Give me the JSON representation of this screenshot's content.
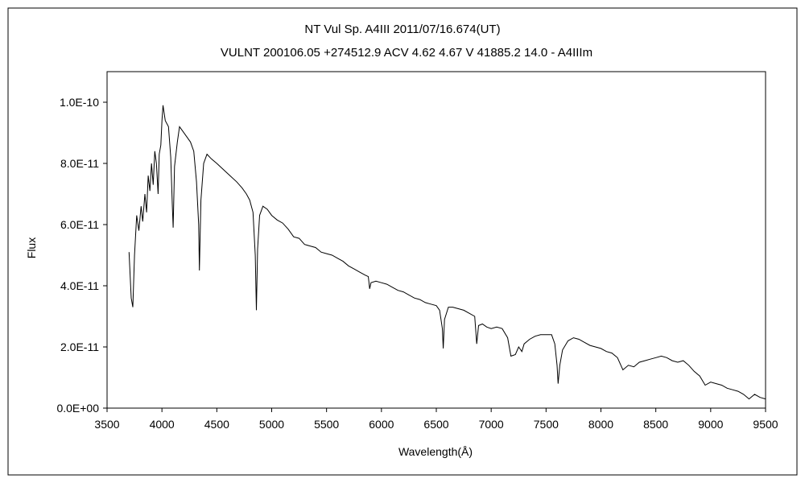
{
  "chart_data": {
    "type": "line",
    "title": "NT Vul    Sp. A4III    2011/07/16.674(UT)",
    "subtitle": "VULNT 200106.05 +274512.9  ACV 4.62  4.67  V 41885.2 14.0 - A4IIIm",
    "xlabel": "Wavelength(Å)",
    "ylabel": "Flux",
    "xlim": [
      3500,
      9500
    ],
    "ylim": [
      0,
      1.1e-10
    ],
    "xticks": [
      "3500",
      "4000",
      "4500",
      "5000",
      "5500",
      "6000",
      "6500",
      "7000",
      "7500",
      "8000",
      "8500",
      "9000",
      "9500"
    ],
    "xtick_values": [
      3500,
      4000,
      4500,
      5000,
      5500,
      6000,
      6500,
      7000,
      7500,
      8000,
      8500,
      9000,
      9500
    ],
    "yticks": [
      "0.0E+00",
      "2.0E-11",
      "4.0E-11",
      "6.0E-11",
      "8.0E-11",
      "1.0E-10"
    ],
    "ytick_values": [
      0,
      2e-11,
      4e-11,
      6e-11,
      8e-11,
      1e-10
    ],
    "grid": false,
    "legend": false,
    "series": [
      {
        "color": "#000000",
        "points": [
          [
            3700,
            5.1e-11
          ],
          [
            3720,
            3.6e-11
          ],
          [
            3735,
            3.3e-11
          ],
          [
            3750,
            5e-11
          ],
          [
            3770,
            6.3e-11
          ],
          [
            3790,
            5.8e-11
          ],
          [
            3810,
            6.6e-11
          ],
          [
            3825,
            6.1e-11
          ],
          [
            3845,
            7e-11
          ],
          [
            3860,
            6.4e-11
          ],
          [
            3875,
            7.6e-11
          ],
          [
            3890,
            7.1e-11
          ],
          [
            3905,
            8e-11
          ],
          [
            3920,
            7.3e-11
          ],
          [
            3935,
            8.4e-11
          ],
          [
            3950,
            8e-11
          ],
          [
            3965,
            7e-11
          ],
          [
            3975,
            8.3e-11
          ],
          [
            3990,
            8.6e-11
          ],
          [
            4000,
            9.4e-11
          ],
          [
            4010,
            9.9e-11
          ],
          [
            4030,
            9.4e-11
          ],
          [
            4060,
            9.2e-11
          ],
          [
            4080,
            8.2e-11
          ],
          [
            4095,
            6.6e-11
          ],
          [
            4102,
            5.9e-11
          ],
          [
            4115,
            7.9e-11
          ],
          [
            4140,
            8.7e-11
          ],
          [
            4160,
            9.2e-11
          ],
          [
            4190,
            9.05e-11
          ],
          [
            4220,
            8.9e-11
          ],
          [
            4260,
            8.7e-11
          ],
          [
            4290,
            8.4e-11
          ],
          [
            4315,
            7.4e-11
          ],
          [
            4335,
            6e-11
          ],
          [
            4341,
            4.5e-11
          ],
          [
            4355,
            6.8e-11
          ],
          [
            4380,
            8e-11
          ],
          [
            4410,
            8.3e-11
          ],
          [
            4450,
            8.15e-11
          ],
          [
            4500,
            8e-11
          ],
          [
            4560,
            7.8e-11
          ],
          [
            4620,
            7.6e-11
          ],
          [
            4680,
            7.4e-11
          ],
          [
            4730,
            7.2e-11
          ],
          [
            4770,
            7e-11
          ],
          [
            4800,
            6.8e-11
          ],
          [
            4830,
            6.4e-11
          ],
          [
            4850,
            5e-11
          ],
          [
            4861,
            3.2e-11
          ],
          [
            4872,
            5.2e-11
          ],
          [
            4890,
            6.3e-11
          ],
          [
            4920,
            6.6e-11
          ],
          [
            4960,
            6.5e-11
          ],
          [
            5000,
            6.3e-11
          ],
          [
            5050,
            6.15e-11
          ],
          [
            5100,
            6.05e-11
          ],
          [
            5150,
            5.85e-11
          ],
          [
            5200,
            5.6e-11
          ],
          [
            5250,
            5.55e-11
          ],
          [
            5300,
            5.35e-11
          ],
          [
            5350,
            5.3e-11
          ],
          [
            5400,
            5.25e-11
          ],
          [
            5450,
            5.1e-11
          ],
          [
            5500,
            5.05e-11
          ],
          [
            5550,
            5e-11
          ],
          [
            5600,
            4.9e-11
          ],
          [
            5650,
            4.8e-11
          ],
          [
            5700,
            4.65e-11
          ],
          [
            5750,
            4.55e-11
          ],
          [
            5800,
            4.45e-11
          ],
          [
            5850,
            4.35e-11
          ],
          [
            5880,
            4.3e-11
          ],
          [
            5893,
            3.9e-11
          ],
          [
            5905,
            4.1e-11
          ],
          [
            5950,
            4.15e-11
          ],
          [
            6000,
            4.1e-11
          ],
          [
            6050,
            4.05e-11
          ],
          [
            6100,
            3.95e-11
          ],
          [
            6150,
            3.85e-11
          ],
          [
            6200,
            3.8e-11
          ],
          [
            6250,
            3.7e-11
          ],
          [
            6300,
            3.6e-11
          ],
          [
            6350,
            3.55e-11
          ],
          [
            6400,
            3.45e-11
          ],
          [
            6450,
            3.4e-11
          ],
          [
            6500,
            3.35e-11
          ],
          [
            6530,
            3.2e-11
          ],
          [
            6555,
            2.6e-11
          ],
          [
            6563,
            1.95e-11
          ],
          [
            6575,
            2.9e-11
          ],
          [
            6610,
            3.3e-11
          ],
          [
            6650,
            3.3e-11
          ],
          [
            6700,
            3.25e-11
          ],
          [
            6750,
            3.2e-11
          ],
          [
            6800,
            3.1e-11
          ],
          [
            6850,
            3e-11
          ],
          [
            6868,
            2.1e-11
          ],
          [
            6885,
            2.7e-11
          ],
          [
            6920,
            2.75e-11
          ],
          [
            6960,
            2.65e-11
          ],
          [
            7000,
            2.6e-11
          ],
          [
            7050,
            2.65e-11
          ],
          [
            7100,
            2.6e-11
          ],
          [
            7150,
            2.3e-11
          ],
          [
            7180,
            1.7e-11
          ],
          [
            7220,
            1.75e-11
          ],
          [
            7250,
            2e-11
          ],
          [
            7280,
            1.85e-11
          ],
          [
            7300,
            2.1e-11
          ],
          [
            7350,
            2.25e-11
          ],
          [
            7400,
            2.35e-11
          ],
          [
            7450,
            2.4e-11
          ],
          [
            7500,
            2.4e-11
          ],
          [
            7550,
            2.4e-11
          ],
          [
            7580,
            2.1e-11
          ],
          [
            7600,
            1.4e-11
          ],
          [
            7610,
            8e-12
          ],
          [
            7625,
            1.4e-11
          ],
          [
            7650,
            1.9e-11
          ],
          [
            7700,
            2.2e-11
          ],
          [
            7750,
            2.3e-11
          ],
          [
            7800,
            2.25e-11
          ],
          [
            7850,
            2.15e-11
          ],
          [
            7900,
            2.05e-11
          ],
          [
            7950,
            2e-11
          ],
          [
            8000,
            1.95e-11
          ],
          [
            8050,
            1.85e-11
          ],
          [
            8100,
            1.8e-11
          ],
          [
            8150,
            1.65e-11
          ],
          [
            8200,
            1.25e-11
          ],
          [
            8250,
            1.4e-11
          ],
          [
            8300,
            1.35e-11
          ],
          [
            8350,
            1.5e-11
          ],
          [
            8400,
            1.55e-11
          ],
          [
            8450,
            1.6e-11
          ],
          [
            8500,
            1.65e-11
          ],
          [
            8550,
            1.7e-11
          ],
          [
            8600,
            1.65e-11
          ],
          [
            8650,
            1.55e-11
          ],
          [
            8700,
            1.5e-11
          ],
          [
            8750,
            1.55e-11
          ],
          [
            8800,
            1.4e-11
          ],
          [
            8850,
            1.2e-11
          ],
          [
            8900,
            1.05e-11
          ],
          [
            8950,
            7.5e-12
          ],
          [
            9000,
            8.5e-12
          ],
          [
            9050,
            8e-12
          ],
          [
            9100,
            7.5e-12
          ],
          [
            9150,
            6.5e-12
          ],
          [
            9200,
            6e-12
          ],
          [
            9250,
            5.5e-12
          ],
          [
            9300,
            4.5e-12
          ],
          [
            9350,
            3e-12
          ],
          [
            9400,
            4.5e-12
          ],
          [
            9450,
            3.5e-12
          ],
          [
            9500,
            3e-12
          ]
        ]
      }
    ]
  }
}
